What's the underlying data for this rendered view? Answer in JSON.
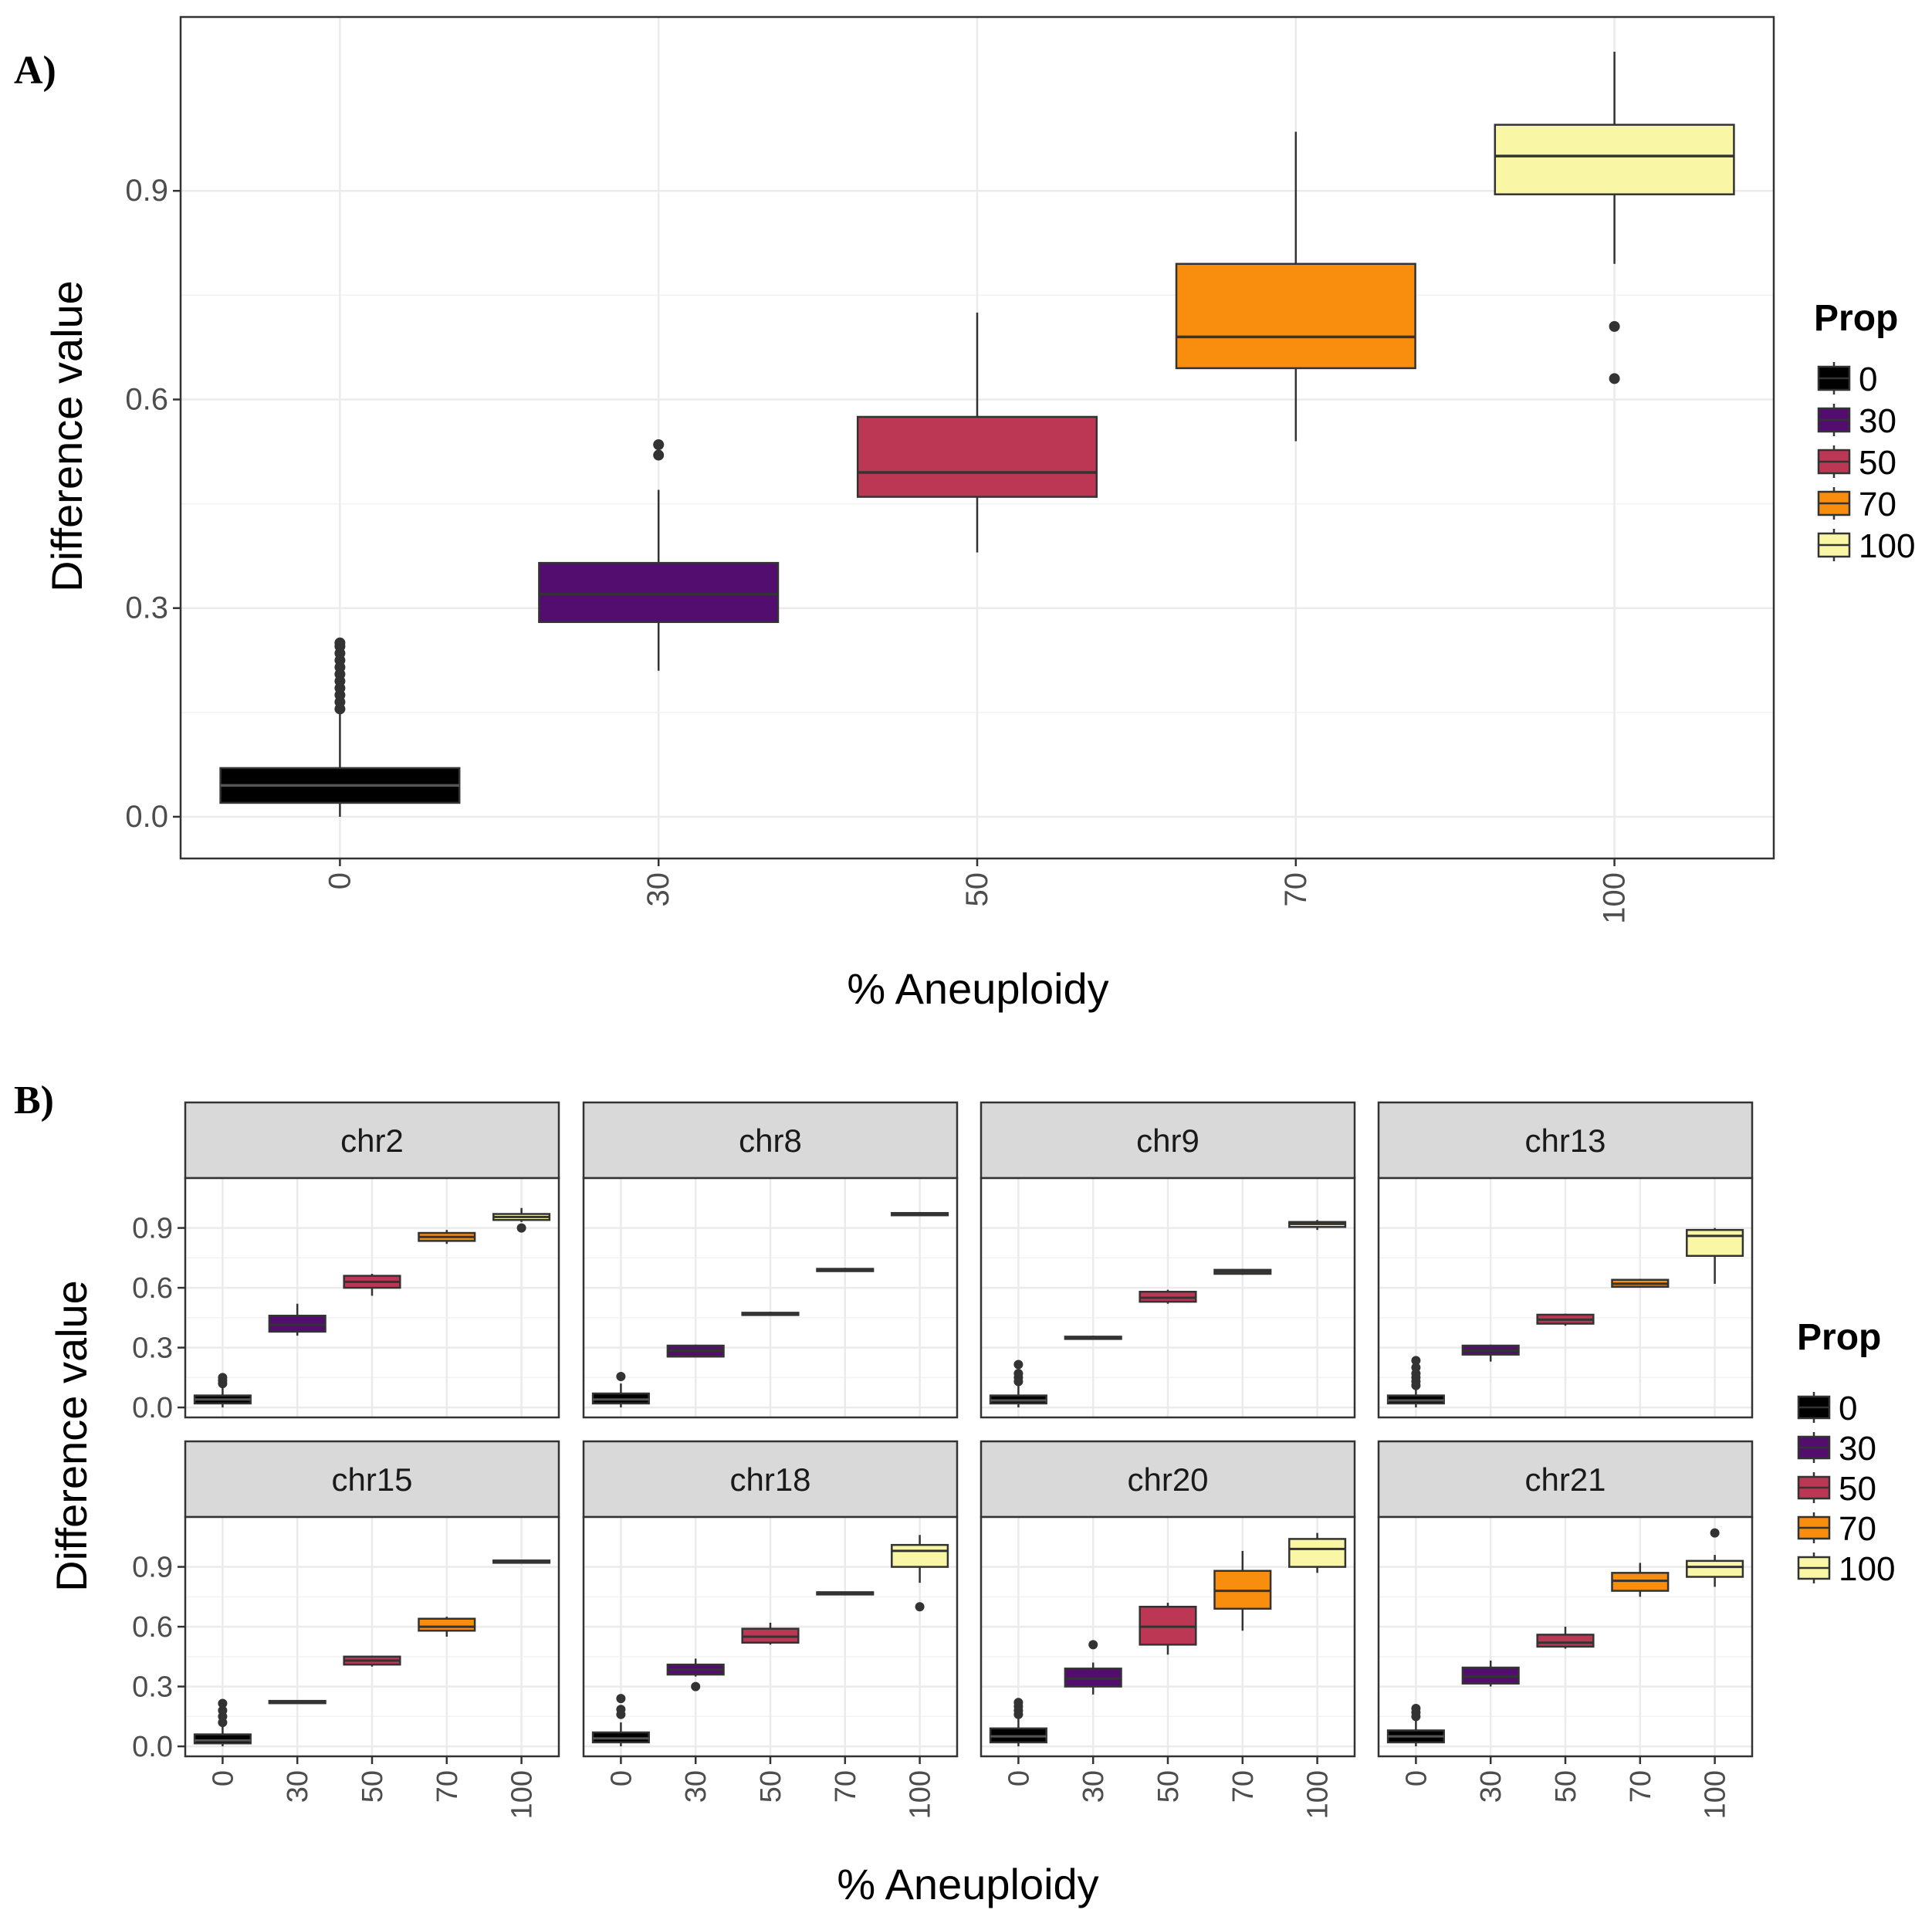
{
  "panel_a_label": "A)",
  "panel_b_label": "B)",
  "colors": {
    "0": "#000000",
    "30": "#520d6e",
    "50": "#bc3754",
    "70": "#f88d0e",
    "100": "#f9f7a6"
  },
  "chart_data": [
    {
      "type": "box",
      "panel": "A",
      "xlabel": "% Aneuploidy",
      "ylabel": "Difference value",
      "categories": [
        "0",
        "30",
        "50",
        "70",
        "100"
      ],
      "ylim": [
        -0.06,
        1.15
      ],
      "yticks": [
        0.0,
        0.3,
        0.6,
        0.9
      ],
      "ytick_labels": [
        "0.0",
        "0.3",
        "0.6",
        "0.9"
      ],
      "boxes": [
        {
          "cat": "0",
          "whisker_low": 0.0,
          "q1": 0.02,
          "median": 0.045,
          "q3": 0.07,
          "whisker_high": 0.15,
          "outliers": [
            0.155,
            0.165,
            0.175,
            0.185,
            0.195,
            0.205,
            0.215,
            0.225,
            0.235,
            0.245,
            0.25
          ]
        },
        {
          "cat": "30",
          "whisker_low": 0.21,
          "q1": 0.28,
          "median": 0.32,
          "q3": 0.365,
          "whisker_high": 0.47,
          "outliers": [
            0.52,
            0.535
          ]
        },
        {
          "cat": "50",
          "whisker_low": 0.38,
          "q1": 0.46,
          "median": 0.495,
          "q3": 0.575,
          "whisker_high": 0.725,
          "outliers": []
        },
        {
          "cat": "70",
          "whisker_low": 0.54,
          "q1": 0.645,
          "median": 0.69,
          "q3": 0.795,
          "whisker_high": 0.985,
          "outliers": []
        },
        {
          "cat": "100",
          "whisker_low": 0.795,
          "q1": 0.895,
          "median": 0.95,
          "q3": 0.995,
          "whisker_high": 1.1,
          "outliers": [
            0.705,
            0.63
          ]
        }
      ],
      "legend": {
        "title": "Prop",
        "entries": [
          "0",
          "30",
          "50",
          "70",
          "100"
        ],
        "position": "right"
      }
    },
    {
      "type": "box",
      "panel": "B",
      "facet": true,
      "xlabel": "% Aneuploidy",
      "ylabel": "Difference value",
      "categories": [
        "0",
        "30",
        "50",
        "70",
        "100"
      ],
      "ylim": [
        -0.05,
        1.15
      ],
      "yticks": [
        0.0,
        0.3,
        0.6,
        0.9
      ],
      "ytick_labels": [
        "0.0",
        "0.3",
        "0.6",
        "0.9"
      ],
      "facets": [
        {
          "name": "chr2",
          "boxes": [
            {
              "cat": "0",
              "whisker_low": 0.0,
              "q1": 0.02,
              "median": 0.04,
              "q3": 0.06,
              "whisker_high": 0.1,
              "outliers": [
                0.12,
                0.135,
                0.15
              ]
            },
            {
              "cat": "30",
              "whisker_low": 0.36,
              "q1": 0.38,
              "median": 0.415,
              "q3": 0.46,
              "whisker_high": 0.52,
              "outliers": []
            },
            {
              "cat": "50",
              "whisker_low": 0.56,
              "q1": 0.6,
              "median": 0.63,
              "q3": 0.66,
              "whisker_high": 0.67,
              "outliers": []
            },
            {
              "cat": "70",
              "whisker_low": 0.82,
              "q1": 0.835,
              "median": 0.855,
              "q3": 0.875,
              "whisker_high": 0.89,
              "outliers": []
            },
            {
              "cat": "100",
              "whisker_low": 0.93,
              "q1": 0.94,
              "median": 0.955,
              "q3": 0.97,
              "whisker_high": 1.0,
              "outliers": [
                0.9
              ]
            }
          ]
        },
        {
          "name": "chr8",
          "boxes": [
            {
              "cat": "0",
              "whisker_low": 0.0,
              "q1": 0.02,
              "median": 0.04,
              "q3": 0.07,
              "whisker_high": 0.12,
              "outliers": [
                0.155
              ]
            },
            {
              "cat": "30",
              "whisker_low": 0.25,
              "q1": 0.255,
              "median": 0.285,
              "q3": 0.31,
              "whisker_high": 0.315,
              "outliers": []
            },
            {
              "cat": "50",
              "whisker_low": 0.46,
              "q1": 0.465,
              "median": 0.47,
              "q3": 0.475,
              "whisker_high": 0.48,
              "outliers": []
            },
            {
              "cat": "70",
              "whisker_low": 0.68,
              "q1": 0.685,
              "median": 0.69,
              "q3": 0.695,
              "whisker_high": 0.7,
              "outliers": []
            },
            {
              "cat": "100",
              "whisker_low": 0.96,
              "q1": 0.965,
              "median": 0.97,
              "q3": 0.975,
              "whisker_high": 0.98,
              "outliers": []
            }
          ]
        },
        {
          "name": "chr9",
          "boxes": [
            {
              "cat": "0",
              "whisker_low": 0.0,
              "q1": 0.02,
              "median": 0.035,
              "q3": 0.06,
              "whisker_high": 0.11,
              "outliers": [
                0.13,
                0.15,
                0.17,
                0.215
              ]
            },
            {
              "cat": "30",
              "whisker_low": 0.34,
              "q1": 0.345,
              "median": 0.35,
              "q3": 0.355,
              "whisker_high": 0.36,
              "outliers": []
            },
            {
              "cat": "50",
              "whisker_low": 0.52,
              "q1": 0.53,
              "median": 0.55,
              "q3": 0.58,
              "whisker_high": 0.59,
              "outliers": []
            },
            {
              "cat": "70",
              "whisker_low": 0.665,
              "q1": 0.67,
              "median": 0.68,
              "q3": 0.69,
              "whisker_high": 0.695,
              "outliers": []
            },
            {
              "cat": "100",
              "whisker_low": 0.89,
              "q1": 0.905,
              "median": 0.92,
              "q3": 0.93,
              "whisker_high": 0.94,
              "outliers": []
            }
          ]
        },
        {
          "name": "chr13",
          "boxes": [
            {
              "cat": "0",
              "whisker_low": 0.0,
              "q1": 0.02,
              "median": 0.035,
              "q3": 0.06,
              "whisker_high": 0.1,
              "outliers": [
                0.11,
                0.13,
                0.15,
                0.17,
                0.2,
                0.235
              ]
            },
            {
              "cat": "30",
              "whisker_low": 0.23,
              "q1": 0.265,
              "median": 0.285,
              "q3": 0.31,
              "whisker_high": 0.315,
              "outliers": []
            },
            {
              "cat": "50",
              "whisker_low": 0.41,
              "q1": 0.42,
              "median": 0.44,
              "q3": 0.465,
              "whisker_high": 0.47,
              "outliers": []
            },
            {
              "cat": "70",
              "whisker_low": 0.6,
              "q1": 0.605,
              "median": 0.62,
              "q3": 0.64,
              "whisker_high": 0.645,
              "outliers": []
            },
            {
              "cat": "100",
              "whisker_low": 0.62,
              "q1": 0.76,
              "median": 0.86,
              "q3": 0.89,
              "whisker_high": 0.9,
              "outliers": []
            }
          ]
        },
        {
          "name": "chr15",
          "boxes": [
            {
              "cat": "0",
              "whisker_low": 0.0,
              "q1": 0.015,
              "median": 0.03,
              "q3": 0.06,
              "whisker_high": 0.1,
              "outliers": [
                0.12,
                0.15,
                0.18,
                0.215
              ]
            },
            {
              "cat": "30",
              "whisker_low": 0.22,
              "q1": 0.222,
              "median": 0.225,
              "q3": 0.228,
              "whisker_high": 0.23,
              "outliers": []
            },
            {
              "cat": "50",
              "whisker_low": 0.4,
              "q1": 0.41,
              "median": 0.43,
              "q3": 0.45,
              "whisker_high": 0.455,
              "outliers": []
            },
            {
              "cat": "70",
              "whisker_low": 0.55,
              "q1": 0.58,
              "median": 0.6,
              "q3": 0.64,
              "whisker_high": 0.65,
              "outliers": []
            },
            {
              "cat": "100",
              "whisker_low": 0.925,
              "q1": 0.928,
              "median": 0.93,
              "q3": 0.932,
              "whisker_high": 0.935,
              "outliers": []
            }
          ]
        },
        {
          "name": "chr18",
          "boxes": [
            {
              "cat": "0",
              "whisker_low": 0.0,
              "q1": 0.02,
              "median": 0.04,
              "q3": 0.07,
              "whisker_high": 0.12,
              "outliers": [
                0.16,
                0.185,
                0.24
              ]
            },
            {
              "cat": "30",
              "whisker_low": 0.35,
              "q1": 0.36,
              "median": 0.385,
              "q3": 0.41,
              "whisker_high": 0.44,
              "outliers": [
                0.3
              ]
            },
            {
              "cat": "50",
              "whisker_low": 0.51,
              "q1": 0.52,
              "median": 0.55,
              "q3": 0.59,
              "whisker_high": 0.62,
              "outliers": []
            },
            {
              "cat": "70",
              "whisker_low": 0.765,
              "q1": 0.768,
              "median": 0.77,
              "q3": 0.773,
              "whisker_high": 0.775,
              "outliers": []
            },
            {
              "cat": "100",
              "whisker_low": 0.82,
              "q1": 0.9,
              "median": 0.98,
              "q3": 1.01,
              "whisker_high": 1.06,
              "outliers": [
                0.7
              ]
            }
          ]
        },
        {
          "name": "chr20",
          "boxes": [
            {
              "cat": "0",
              "whisker_low": 0.0,
              "q1": 0.02,
              "median": 0.05,
              "q3": 0.09,
              "whisker_high": 0.14,
              "outliers": [
                0.16,
                0.18,
                0.2,
                0.22
              ]
            },
            {
              "cat": "30",
              "whisker_low": 0.26,
              "q1": 0.3,
              "median": 0.34,
              "q3": 0.39,
              "whisker_high": 0.42,
              "outliers": [
                0.51
              ]
            },
            {
              "cat": "50",
              "whisker_low": 0.46,
              "q1": 0.51,
              "median": 0.6,
              "q3": 0.7,
              "whisker_high": 0.72,
              "outliers": []
            },
            {
              "cat": "70",
              "whisker_low": 0.58,
              "q1": 0.69,
              "median": 0.78,
              "q3": 0.88,
              "whisker_high": 0.98,
              "outliers": []
            },
            {
              "cat": "100",
              "whisker_low": 0.87,
              "q1": 0.9,
              "median": 0.99,
              "q3": 1.04,
              "whisker_high": 1.07,
              "outliers": []
            }
          ]
        },
        {
          "name": "chr21",
          "boxes": [
            {
              "cat": "0",
              "whisker_low": 0.0,
              "q1": 0.02,
              "median": 0.05,
              "q3": 0.08,
              "whisker_high": 0.13,
              "outliers": [
                0.15,
                0.17,
                0.19
              ]
            },
            {
              "cat": "30",
              "whisker_low": 0.3,
              "q1": 0.315,
              "median": 0.35,
              "q3": 0.395,
              "whisker_high": 0.43,
              "outliers": []
            },
            {
              "cat": "50",
              "whisker_low": 0.49,
              "q1": 0.5,
              "median": 0.52,
              "q3": 0.56,
              "whisker_high": 0.6,
              "outliers": []
            },
            {
              "cat": "70",
              "whisker_low": 0.75,
              "q1": 0.78,
              "median": 0.83,
              "q3": 0.87,
              "whisker_high": 0.92,
              "outliers": []
            },
            {
              "cat": "100",
              "whisker_low": 0.8,
              "q1": 0.85,
              "median": 0.9,
              "q3": 0.93,
              "whisker_high": 0.96,
              "outliers": [
                1.07
              ]
            }
          ]
        }
      ],
      "legend": {
        "title": "Prop",
        "entries": [
          "0",
          "30",
          "50",
          "70",
          "100"
        ],
        "position": "right"
      }
    }
  ]
}
